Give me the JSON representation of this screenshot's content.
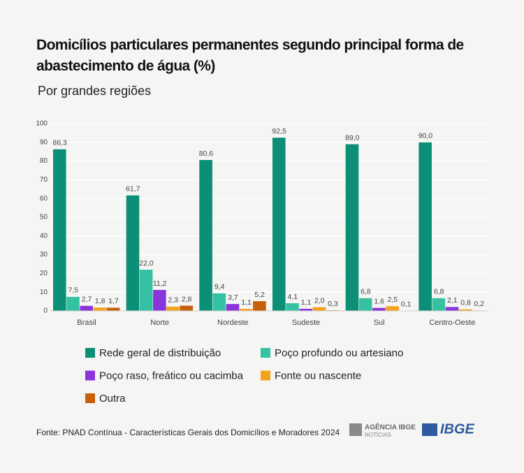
{
  "chart_data": {
    "type": "bar",
    "title": "Domicílios particulares permanentes segundo principal forma de abastecimento de água (%)",
    "subtitle": "Por grandes regiões",
    "categories": [
      "Brasil",
      "Norte",
      "Nordeste",
      "Sudeste",
      "Sul",
      "Centro-Oeste"
    ],
    "series": [
      {
        "name": "Rede geral de distribuição",
        "color": "#0b8f77",
        "values": [
          86.3,
          61.7,
          80.6,
          92.5,
          89.0,
          90.0
        ],
        "value_labels": [
          "86,3",
          "61,7",
          "80,6",
          "92,5",
          "89,0",
          "90,0"
        ]
      },
      {
        "name": "Poço profundo ou artesiano",
        "color": "#35c2a3",
        "values": [
          7.5,
          22.0,
          9.4,
          4.1,
          6.8,
          6.8
        ],
        "value_labels": [
          "7,5",
          "22,0",
          "9,4",
          "4,1",
          "6,8",
          "6,8"
        ]
      },
      {
        "name": "Poço raso, freático ou cacimba",
        "color": "#8a34dc",
        "values": [
          2.7,
          11.2,
          3.7,
          1.1,
          1.6,
          2.1
        ],
        "value_labels": [
          "2,7",
          "11,2",
          "3,7",
          "1,1",
          "1,6",
          "2,1"
        ]
      },
      {
        "name": "Fonte ou nascente",
        "color": "#f4a21c",
        "values": [
          1.8,
          2.3,
          1.1,
          2.0,
          2.5,
          0.8
        ],
        "value_labels": [
          "1,8",
          "2,3",
          "1,1",
          "2,0",
          "2,5",
          "0,8"
        ]
      },
      {
        "name": "Outra",
        "color": "#c6600b",
        "values": [
          1.7,
          2.8,
          5.2,
          0.3,
          0.1,
          0.2
        ],
        "value_labels": [
          "1,7",
          "2,8",
          "5,2",
          "0,3",
          "0,1",
          "0,2"
        ]
      }
    ],
    "ylim": [
      0,
      100
    ],
    "yticks": [
      0,
      10,
      20,
      30,
      40,
      50,
      60,
      70,
      80,
      90,
      100
    ],
    "grid": true,
    "source": "Fonte: PNAD Contínua - Características Gerais dos Domicílios e Moradores 2024",
    "logos": {
      "agency": "AGÊNCIA IBGE",
      "agency_sub": "NOTÍCIAS",
      "ibge": "IBGE"
    }
  }
}
